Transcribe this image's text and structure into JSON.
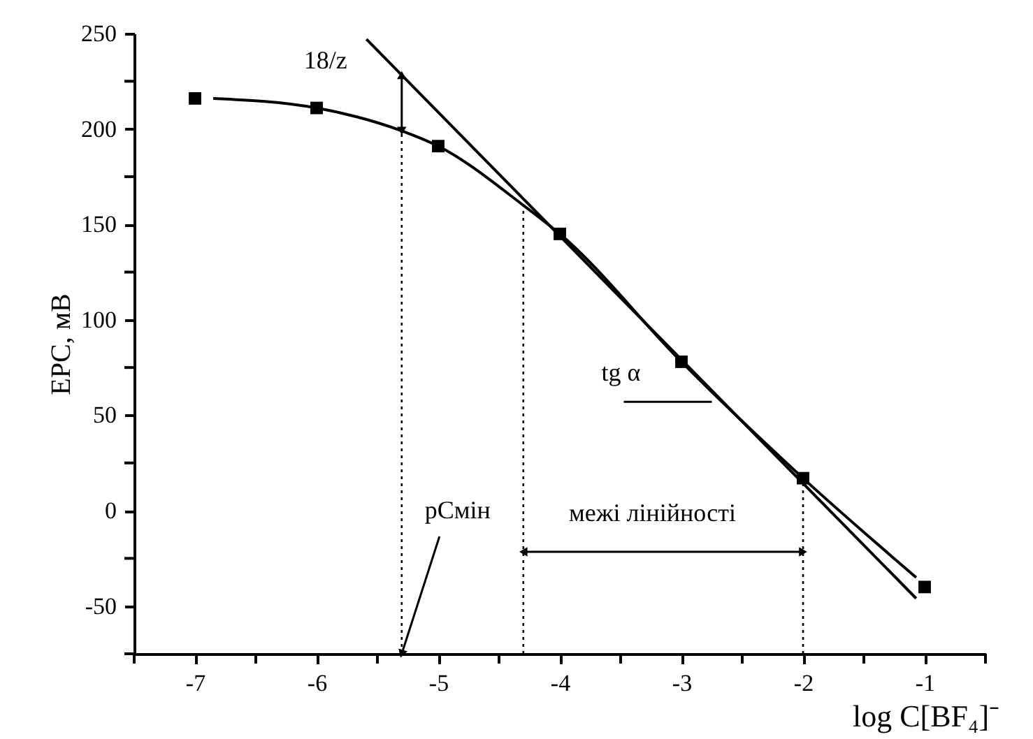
{
  "chart_data": {
    "type": "scatter",
    "xlabel": "log C[BF₄]⁻",
    "ylabel": "EPC, мВ",
    "xlim": [
      -7.5,
      -0.5
    ],
    "ylim": [
      -75,
      250
    ],
    "xticks": [
      {
        "value": -7.5,
        "label": null
      },
      -7,
      {
        "value": -6.5,
        "label": null
      },
      -6,
      {
        "value": -5.5,
        "label": null
      },
      -5,
      {
        "value": -4.5,
        "label": null
      },
      -4,
      {
        "value": -3.5,
        "label": null
      },
      -3,
      {
        "value": -2.5,
        "label": null
      },
      -2,
      {
        "value": -1.5,
        "label": null
      },
      -1,
      {
        "value": -0.5,
        "label": null
      }
    ],
    "yticks": [
      {
        "value": -75,
        "label": null
      },
      -50,
      {
        "value": -25,
        "label": null
      },
      0,
      {
        "value": 25,
        "label": null
      },
      50,
      {
        "value": 75,
        "label": null
      },
      100,
      {
        "value": 125,
        "label": null
      },
      150,
      {
        "value": 175,
        "label": null
      },
      200,
      {
        "value": 225,
        "label": null
      },
      250
    ],
    "grid": false,
    "series": [
      {
        "marker": "square",
        "color": "#000000",
        "x": [
          -7,
          -6,
          -5,
          -4,
          -3,
          -2,
          -1
        ],
        "values": [
          216,
          211,
          191,
          145,
          78,
          17,
          -40
        ]
      },
      {
        "type": "line",
        "line_style": "solid",
        "color": "#000000",
        "x": [
          -6.85,
          -6,
          -5.3,
          -5,
          -4.3,
          -4,
          -3,
          -2,
          -1.07
        ],
        "values": [
          216,
          211,
          199,
          191,
          160,
          145,
          78,
          17,
          -35
        ]
      },
      {
        "type": "line",
        "line_style": "solid",
        "color": "#000000",
        "x": [
          -5.59,
          -1.07
        ],
        "values": [
          247,
          -46
        ]
      },
      {
        "type": "line",
        "line_style": "dotted",
        "color": "#000000",
        "x": [
          -5.3,
          -5.3
        ],
        "values": [
          -75,
          199
        ]
      },
      {
        "type": "line",
        "line_style": "dotted",
        "color": "#000000",
        "x": [
          -4.3,
          -4.3
        ],
        "values": [
          -75,
          160
        ]
      },
      {
        "type": "line",
        "line_style": "dotted",
        "color": "#000000",
        "x": [
          -2,
          -2
        ],
        "values": [
          -75,
          17
        ]
      }
    ],
    "annotations": [
      "18/z",
      {
        "text": "pCмін",
        "x": -5.3,
        "y": -75
      },
      "межі лінійності",
      {
        "text": "tg α",
        "x": -2.75,
        "y": 57
      }
    ]
  }
}
